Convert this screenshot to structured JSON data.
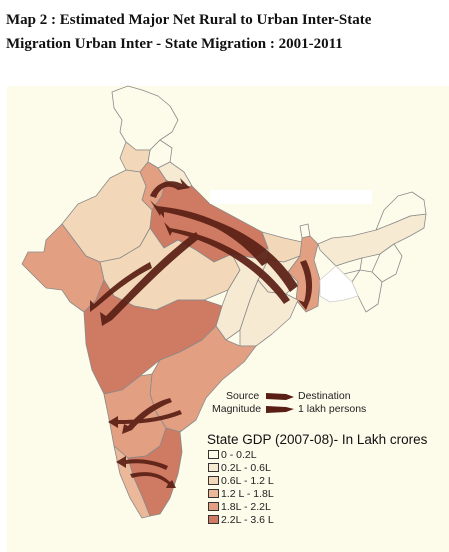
{
  "title": {
    "line1": "Map 2 : Estimated Major Net Rural to Urban Inter-State",
    "line2": "Migration    Urban Inter - State Migration : 2001-2011"
  },
  "arrow_legend": {
    "source_label": "Source",
    "destination_label": "Destination",
    "magnitude_label": "Magnitude",
    "magnitude_value": "1 lakh persons"
  },
  "gdp_legend": {
    "title": "State GDP (2007-08)- In Lakh crores",
    "classes": [
      {
        "label": "0 - 0.2L",
        "color": "#fdfbea"
      },
      {
        "label": "0.2L - 0.6L",
        "color": "#f7ead2"
      },
      {
        "label": "0.6L - 1.2 L",
        "color": "#f2d8b8"
      },
      {
        "label": "1.2 L - 1.8L",
        "color": "#ebb99a"
      },
      {
        "label": "1.8L - 2.2L",
        "color": "#e29f82"
      },
      {
        "label": "2.2L - 3.6 L",
        "color": "#cf7a62"
      }
    ]
  },
  "colors": {
    "arrow": "#5a1f14",
    "border": "#8a8a8a",
    "background": "#fdfbea"
  }
}
